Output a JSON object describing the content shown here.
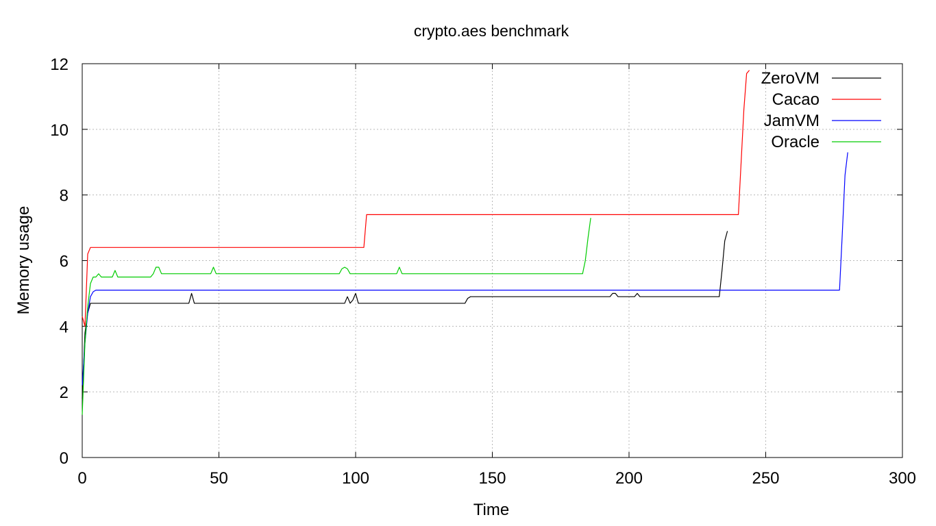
{
  "chart_data": {
    "type": "line",
    "title": "crypto.aes benchmark",
    "xlabel": "Time",
    "ylabel": "Memory usage",
    "xlim": [
      0,
      300
    ],
    "ylim": [
      0,
      12
    ],
    "x_ticks": [
      0,
      50,
      100,
      150,
      200,
      250,
      300
    ],
    "y_ticks": [
      0,
      2,
      4,
      6,
      8,
      10,
      12
    ],
    "x_tick_labels": [
      "0",
      "50",
      "100",
      "150",
      "200",
      "250",
      "300"
    ],
    "y_tick_labels": [
      "0",
      "2",
      "4",
      "6",
      "8",
      "10",
      "12"
    ],
    "grid": true,
    "legend_position": "top-right",
    "series": [
      {
        "name": "ZeroVM",
        "color": "#000000",
        "x": [
          0,
          1,
          2,
          3,
          39,
          40,
          41,
          96,
          97,
          98,
          99,
          100,
          101,
          140,
          141,
          142,
          193,
          194,
          195,
          196,
          202,
          203,
          204,
          233,
          234,
          235,
          236
        ],
        "y": [
          1.8,
          3.8,
          4.4,
          4.7,
          4.7,
          5.0,
          4.7,
          4.7,
          4.9,
          4.7,
          4.8,
          5.0,
          4.7,
          4.7,
          4.85,
          4.9,
          4.9,
          5.0,
          5.0,
          4.9,
          4.9,
          5.0,
          4.9,
          4.9,
          5.7,
          6.6,
          6.9
        ]
      },
      {
        "name": "Cacao",
        "color": "#ff0000",
        "x": [
          0,
          1,
          2,
          3,
          102,
          103,
          104,
          240,
          241,
          242,
          243,
          244
        ],
        "y": [
          4.3,
          4.0,
          6.2,
          6.4,
          6.4,
          6.4,
          7.4,
          7.4,
          9.0,
          10.6,
          11.7,
          11.8
        ]
      },
      {
        "name": "JamVM",
        "color": "#0000ff",
        "x": [
          0,
          1,
          2,
          3,
          4,
          5,
          276,
          277,
          278,
          279,
          280
        ],
        "y": [
          2.2,
          3.5,
          4.4,
          4.9,
          5.05,
          5.1,
          5.1,
          5.1,
          6.8,
          8.6,
          9.3
        ]
      },
      {
        "name": "Oracle",
        "color": "#00cc00",
        "x": [
          0,
          1,
          2,
          3,
          4,
          5,
          6,
          7,
          11,
          12,
          13,
          25,
          26,
          27,
          28,
          29,
          47,
          48,
          49,
          94,
          95,
          96,
          97,
          98,
          115,
          116,
          117,
          183,
          184,
          185,
          186
        ],
        "y": [
          1.3,
          3.5,
          4.6,
          5.3,
          5.5,
          5.5,
          5.6,
          5.5,
          5.5,
          5.7,
          5.5,
          5.5,
          5.6,
          5.8,
          5.8,
          5.6,
          5.6,
          5.8,
          5.6,
          5.6,
          5.75,
          5.8,
          5.75,
          5.6,
          5.6,
          5.8,
          5.6,
          5.6,
          6.0,
          6.7,
          7.3
        ]
      }
    ]
  }
}
